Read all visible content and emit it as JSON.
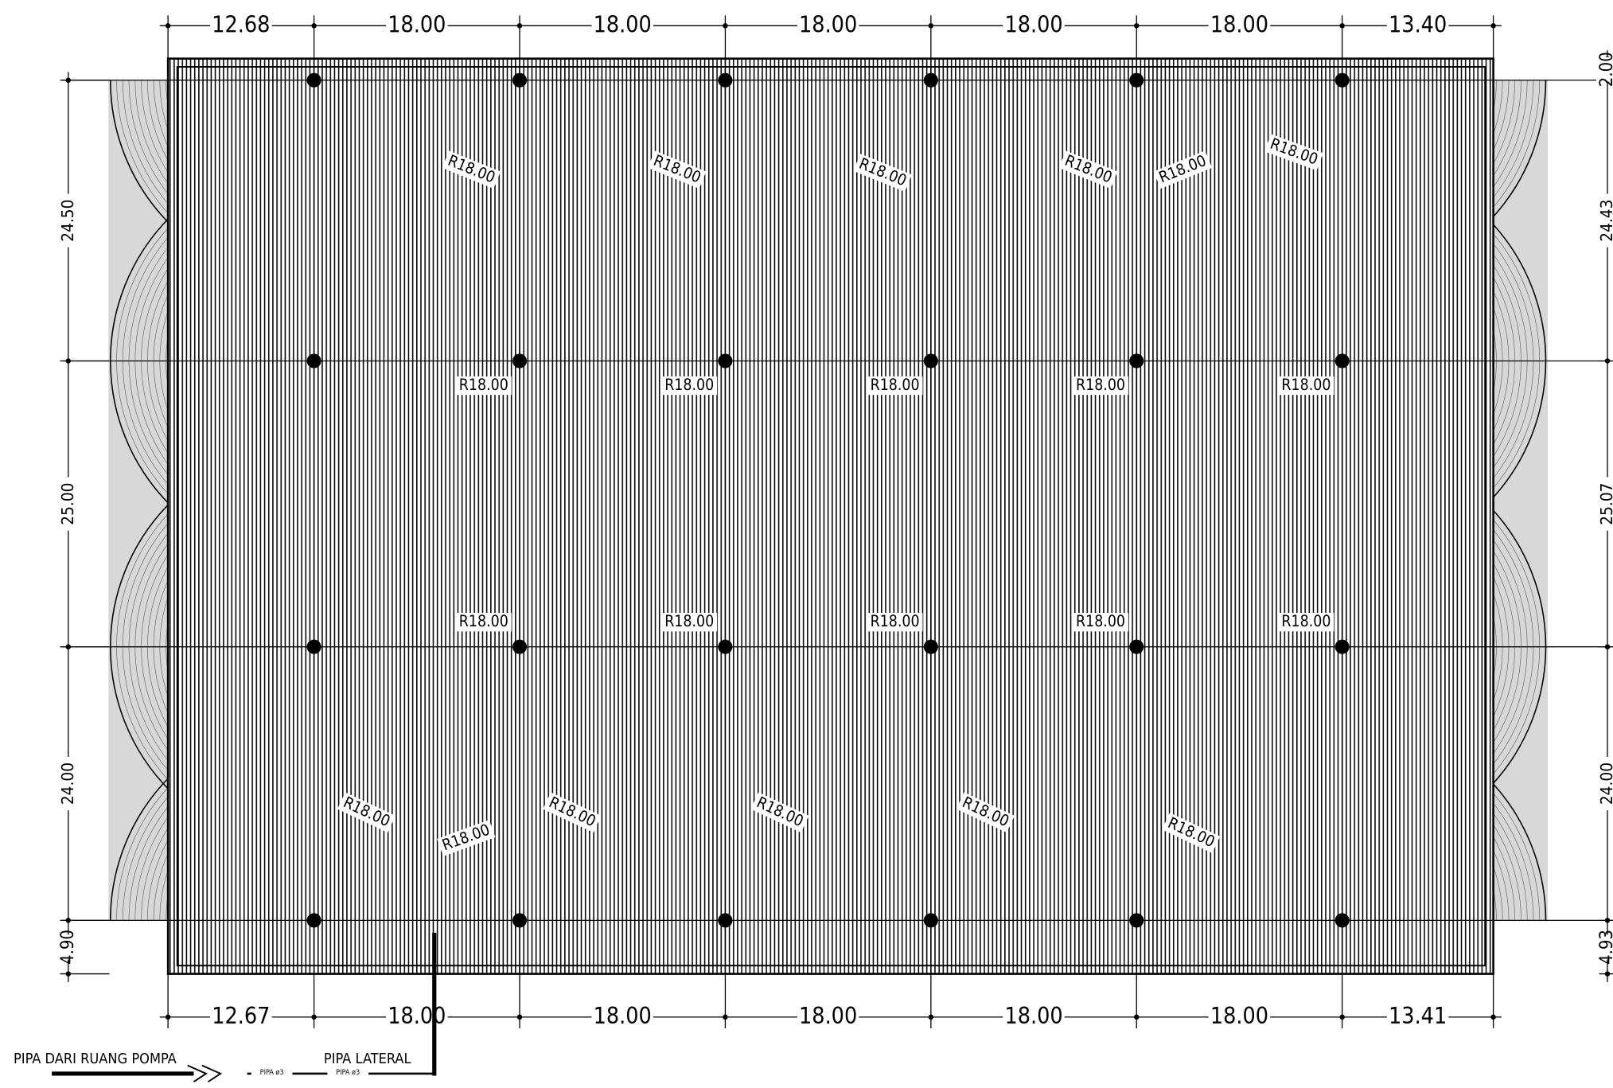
{
  "dimensions": {
    "top": [
      "12.68",
      "18.00",
      "18.00",
      "18.00",
      "18.00",
      "18.00",
      "13.40"
    ],
    "bottom": [
      "12.67",
      "18.00",
      "18.00",
      "18.00",
      "18.00",
      "18.00",
      "13.41"
    ],
    "left": [
      "24.50",
      "25.00",
      "24.00",
      "4.90"
    ],
    "right": [
      "2.00",
      "24.43",
      "25.07",
      "24.00",
      "4.93"
    ]
  },
  "radius_labels": [
    "R18.00",
    "R18.00",
    "R18.00",
    "R18.00",
    "R18.00",
    "R18.00",
    "R18.00",
    "R18.00",
    "R18.00",
    "R18.00",
    "R18.00",
    "R18.00",
    "R18.00",
    "R18.00",
    "R18.00",
    "R18.00",
    "R18.00",
    "R18.00",
    "R18.00",
    "R18.00",
    "R18.00",
    "R18.00"
  ],
  "legend": {
    "supply_pipe": "PIPA DARI RUANG POMPA",
    "lateral_pipe": "PIPA LATERAL",
    "pipe_size_1": "PIPA ø3",
    "pipe_size_2": "PIPA ø3"
  }
}
